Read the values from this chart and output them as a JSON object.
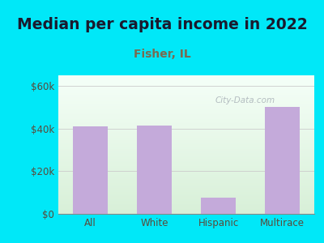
{
  "title": "Median per capita income in 2022",
  "subtitle": "Fisher, IL",
  "categories": [
    "All",
    "White",
    "Hispanic",
    "Multirace"
  ],
  "values": [
    41000,
    41500,
    7500,
    50000
  ],
  "bar_color": "#c4aada",
  "title_fontsize": 13.5,
  "title_color": "#1a1a2e",
  "subtitle_fontsize": 10,
  "subtitle_color": "#7a6a50",
  "background_outer": "#00e8f8",
  "background_inner_top": "#f5fff8",
  "background_inner_bottom": "#d8f0d8",
  "ylim": [
    0,
    65000
  ],
  "yticks": [
    0,
    20000,
    40000,
    60000
  ],
  "ytick_labels": [
    "$0",
    "$20k",
    "$40k",
    "$60k"
  ],
  "watermark": "City-Data.com",
  "tick_color": "#5a4a3a",
  "grid_color": "#cccccc"
}
